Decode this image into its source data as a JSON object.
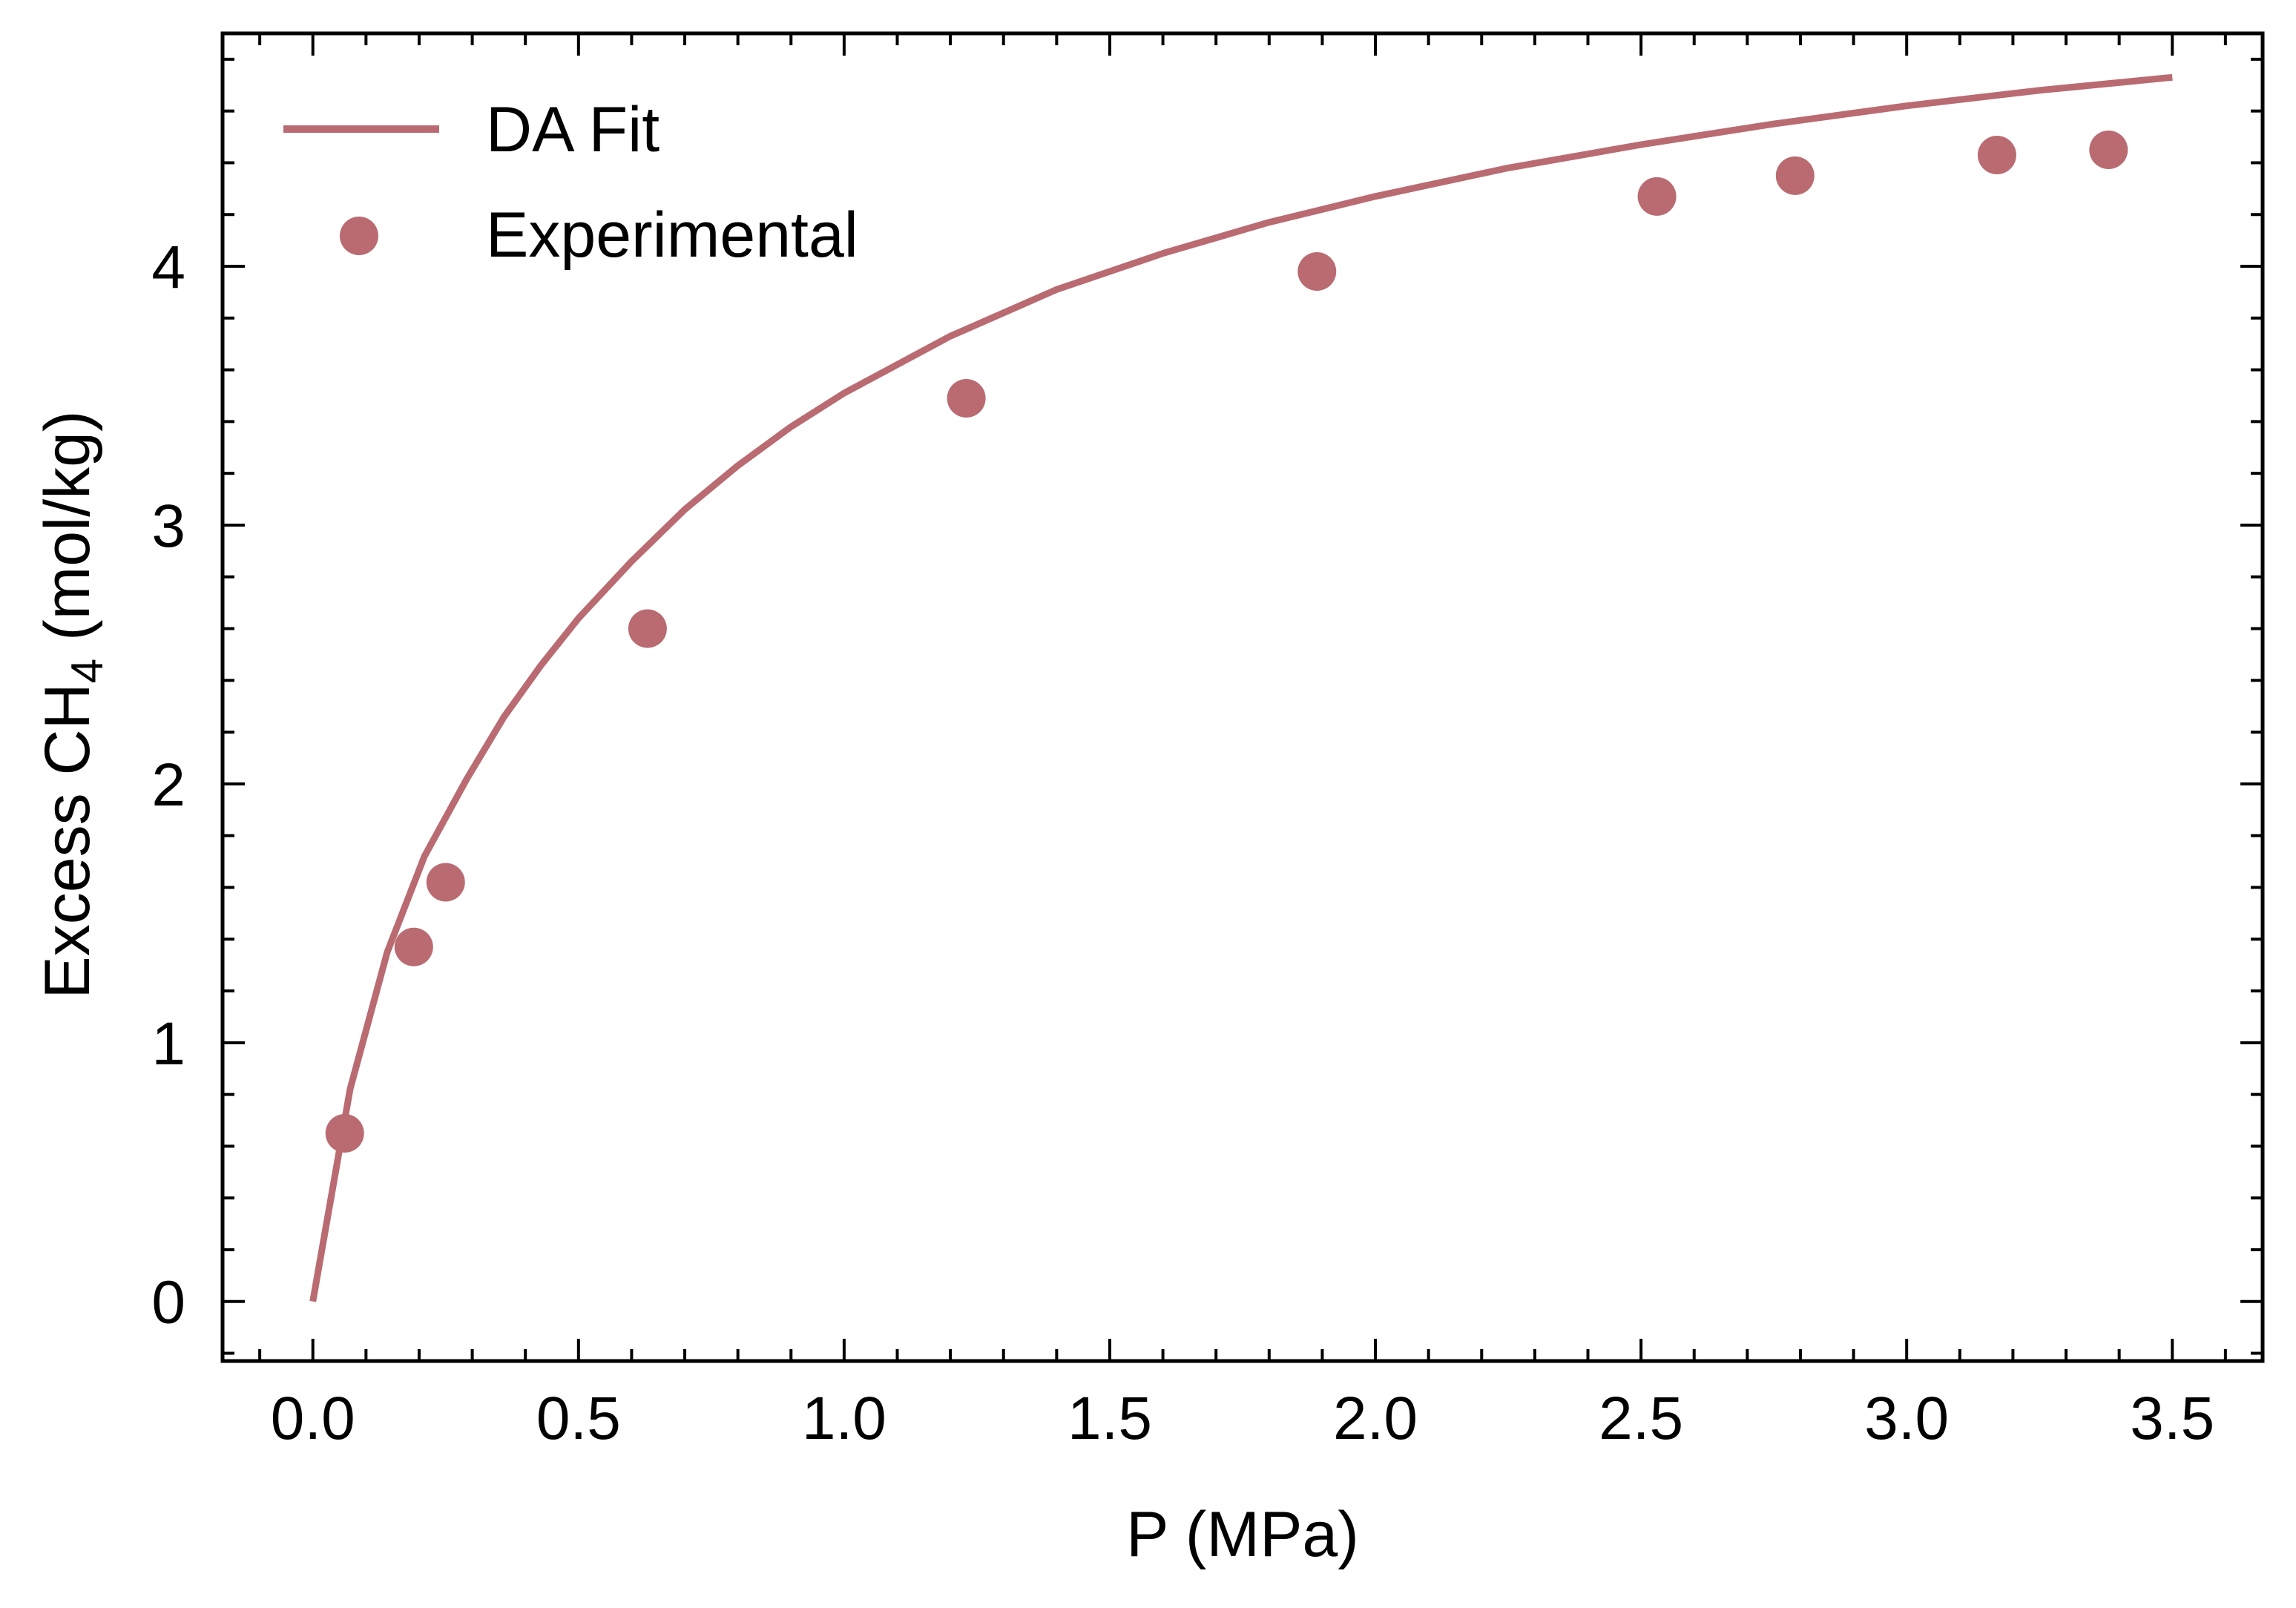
{
  "chart_data": {
    "type": "scatter",
    "xlabel": "P (MPa)",
    "ylabel": {
      "prefix": "Excess CH",
      "subscript": "4",
      "suffix": " (mol/kg)"
    },
    "xlim": [
      -0.17,
      3.67
    ],
    "ylim": [
      -0.23,
      4.9
    ],
    "x_major_ticks": [
      0.0,
      0.5,
      1.0,
      1.5,
      2.0,
      2.5,
      3.0,
      3.5
    ],
    "x_tick_labels": [
      "0.0",
      "0.5",
      "1.0",
      "1.5",
      "2.0",
      "2.5",
      "3.0",
      "3.5"
    ],
    "x_minor_step": 0.1,
    "y_major_ticks": [
      0,
      1,
      2,
      3,
      4
    ],
    "y_tick_labels": [
      "0",
      "1",
      "2",
      "3",
      "4"
    ],
    "y_minor_step": 0.2,
    "grid": false,
    "legend_position": "top-left",
    "color": "#b96b71",
    "series": [
      {
        "name": "DA Fit",
        "kind": "line",
        "x": [
          0.0,
          0.07,
          0.14,
          0.21,
          0.29,
          0.36,
          0.43,
          0.5,
          0.6,
          0.7,
          0.8,
          0.9,
          1.0,
          1.2,
          1.4,
          1.6,
          1.8,
          2.0,
          2.25,
          2.5,
          2.75,
          3.0,
          3.25,
          3.5
        ],
        "y": [
          0.0,
          0.82,
          1.35,
          1.72,
          2.02,
          2.26,
          2.46,
          2.64,
          2.86,
          3.06,
          3.23,
          3.38,
          3.51,
          3.73,
          3.91,
          4.05,
          4.17,
          4.27,
          4.38,
          4.47,
          4.55,
          4.62,
          4.68,
          4.73
        ]
      },
      {
        "name": "Experimental",
        "kind": "scatter",
        "x": [
          0.06,
          0.19,
          0.25,
          0.63,
          1.23,
          1.89,
          2.53,
          2.79,
          3.17,
          3.38
        ],
        "y": [
          0.65,
          1.37,
          1.62,
          2.6,
          3.49,
          3.98,
          4.27,
          4.35,
          4.43,
          4.45
        ]
      }
    ]
  }
}
